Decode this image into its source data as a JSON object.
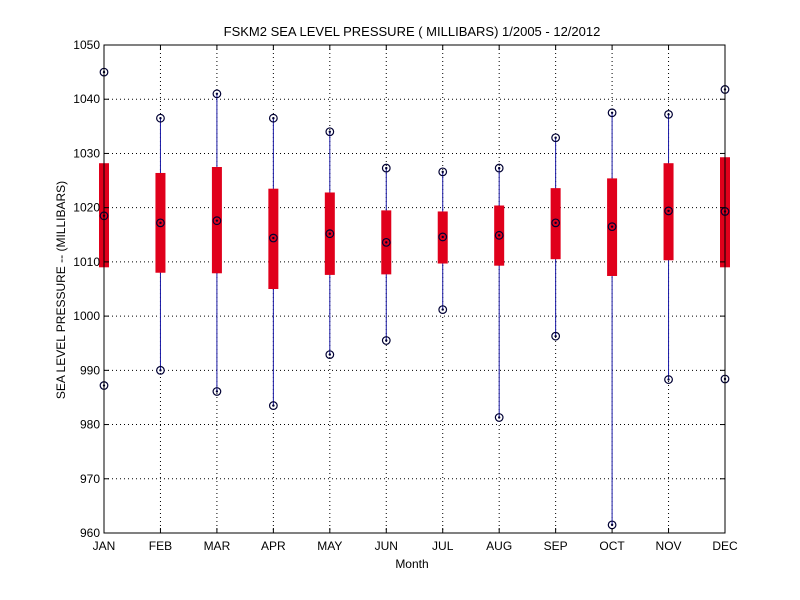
{
  "chart_data": {
    "type": "box",
    "title": "FSKM2  SEA LEVEL PRESSURE ( MILLIBARS) 1/2005 - 12/2012",
    "xlabel": "Month",
    "ylabel": "SEA LEVEL PRESSURE -- (MILLIBARS)",
    "ylim": [
      960,
      1050
    ],
    "yticks": [
      960,
      970,
      980,
      990,
      1000,
      1010,
      1020,
      1030,
      1040,
      1050
    ],
    "grid": true,
    "categories": [
      "JAN",
      "FEB",
      "MAR",
      "APR",
      "MAY",
      "JUN",
      "JUL",
      "AUG",
      "SEP",
      "OCT",
      "NOV",
      "DEC"
    ],
    "min": [
      987.2,
      990.0,
      986.1,
      983.5,
      992.9,
      995.5,
      1001.2,
      981.3,
      996.3,
      961.5,
      988.3,
      988.4
    ],
    "max": [
      1045.0,
      1036.5,
      1041.0,
      1036.5,
      1034.0,
      1027.3,
      1026.6,
      1027.3,
      1032.9,
      1037.5,
      1037.2,
      1041.8
    ],
    "mean": [
      1018.5,
      1017.2,
      1017.6,
      1014.4,
      1015.2,
      1013.6,
      1014.6,
      1014.9,
      1017.2,
      1016.5,
      1019.4,
      1019.3
    ],
    "box_low": [
      1009.0,
      1008.0,
      1007.9,
      1005.0,
      1007.6,
      1007.7,
      1009.7,
      1009.3,
      1010.5,
      1007.4,
      1010.3,
      1009.0
    ],
    "box_high": [
      1028.2,
      1026.4,
      1027.5,
      1023.5,
      1022.8,
      1019.5,
      1019.3,
      1020.4,
      1023.6,
      1025.4,
      1028.2,
      1029.3
    ],
    "colors": {
      "whisker": "#1a1aa6",
      "box": "#e0001b",
      "marker": "#000033",
      "axis": "#000000"
    }
  }
}
